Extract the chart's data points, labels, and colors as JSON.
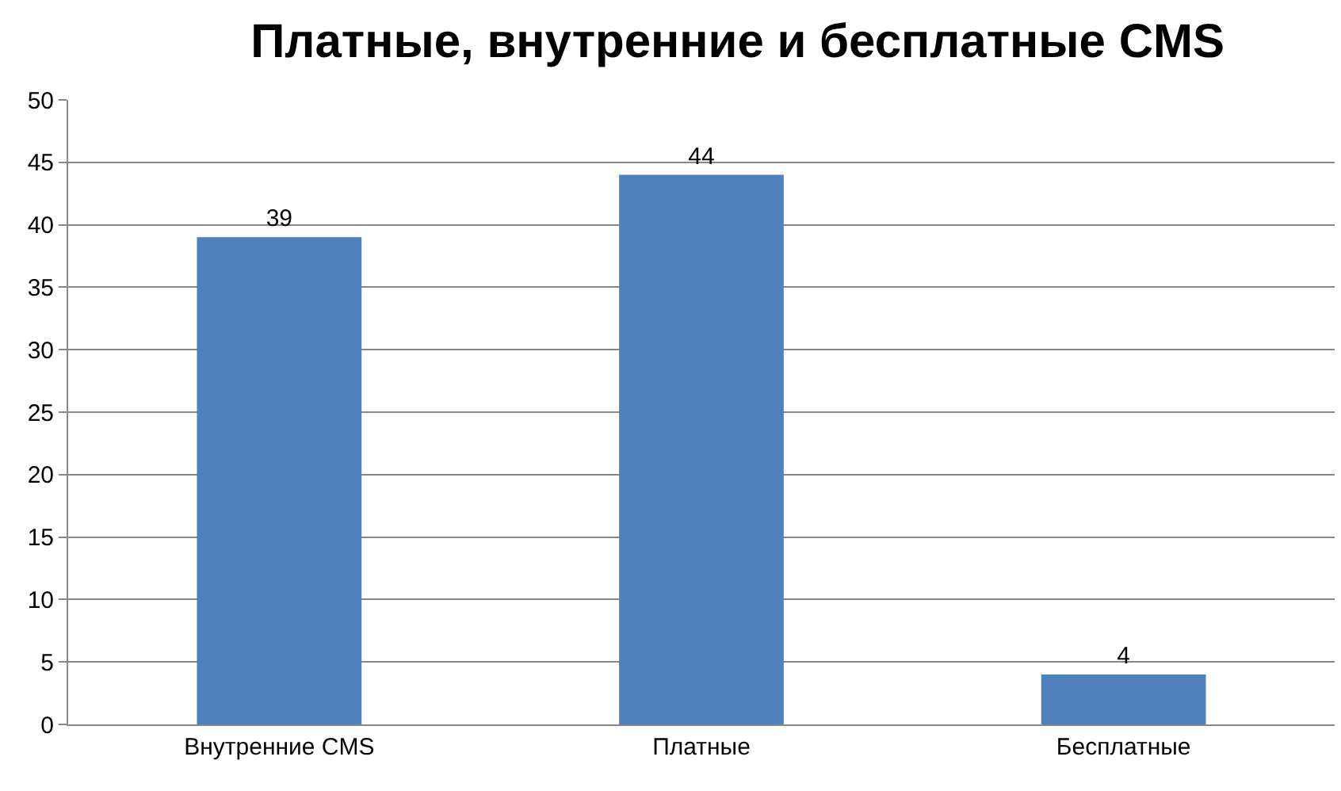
{
  "chart_data": {
    "type": "bar",
    "title": "Платные, внутренние и бесплатные CMS",
    "categories": [
      "Внутренние CMS",
      "Платные",
      "Бесплатные"
    ],
    "values": [
      39,
      44,
      4
    ],
    "color": "#4f81bd",
    "ylim": [
      0,
      50
    ],
    "yticks": [
      0,
      5,
      10,
      15,
      20,
      25,
      30,
      35,
      40,
      45,
      50
    ],
    "grid": "y",
    "data_labels": true
  }
}
